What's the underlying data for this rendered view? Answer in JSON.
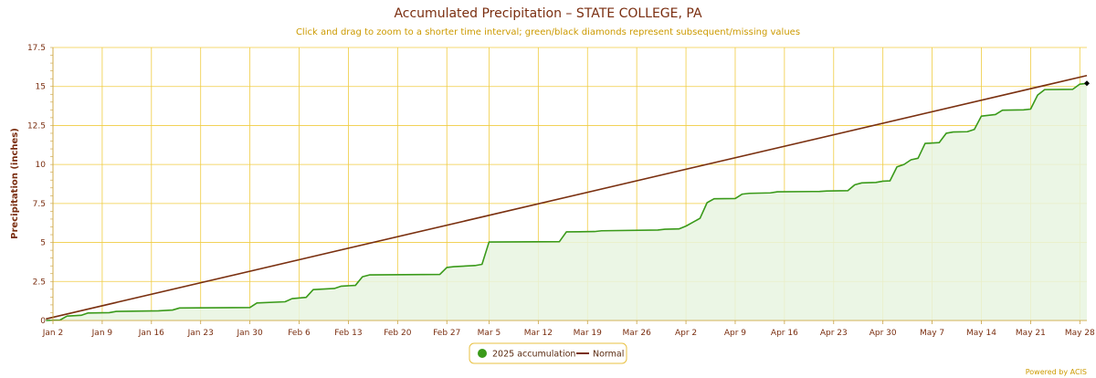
{
  "chart_data": {
    "type": "area",
    "title": "Accumulated Precipitation – STATE COLLEGE, PA",
    "subtitle": "Click and drag to zoom to a shorter time interval; green/black diamonds represent subsequent/missing values",
    "ylabel": "Precipitation (inches)",
    "xlabel": "",
    "ylim": [
      0,
      17.5
    ],
    "yticks": [
      0,
      2.5,
      5,
      7.5,
      10,
      12.5,
      15,
      17.5
    ],
    "ytick_labels": [
      "0",
      "2.5",
      "5",
      "7.5",
      "10",
      "12.5",
      "15",
      "17.5"
    ],
    "xlim": [
      "2025-01-02",
      "2025-05-29"
    ],
    "xticks": [
      {
        "date": "2025-01-02",
        "label": "Jan 2"
      },
      {
        "date": "2025-01-09",
        "label": "Jan 9"
      },
      {
        "date": "2025-01-16",
        "label": "Jan 16"
      },
      {
        "date": "2025-01-23",
        "label": "Jan 23"
      },
      {
        "date": "2025-01-30",
        "label": "Jan 30"
      },
      {
        "date": "2025-02-06",
        "label": "Feb 6"
      },
      {
        "date": "2025-02-13",
        "label": "Feb 13"
      },
      {
        "date": "2025-02-20",
        "label": "Feb 20"
      },
      {
        "date": "2025-02-27",
        "label": "Feb 27"
      },
      {
        "date": "2025-03-05",
        "label": "Mar 5"
      },
      {
        "date": "2025-03-12",
        "label": "Mar 12"
      },
      {
        "date": "2025-03-19",
        "label": "Mar 19"
      },
      {
        "date": "2025-03-26",
        "label": "Mar 26"
      },
      {
        "date": "2025-04-02",
        "label": "Apr 2"
      },
      {
        "date": "2025-04-09",
        "label": "Apr 9"
      },
      {
        "date": "2025-04-16",
        "label": "Apr 16"
      },
      {
        "date": "2025-04-23",
        "label": "Apr 23"
      },
      {
        "date": "2025-04-30",
        "label": "Apr 30"
      },
      {
        "date": "2025-05-07",
        "label": "May 7"
      },
      {
        "date": "2025-05-14",
        "label": "May 14"
      },
      {
        "date": "2025-05-21",
        "label": "May 21"
      },
      {
        "date": "2025-05-28",
        "label": "May 28"
      }
    ],
    "grid": true,
    "legend_position": "bottom-center",
    "colors": {
      "accumulation": "#3a9a1a",
      "accumulation_fill": "#e8f5e0",
      "normal": "#7a3010",
      "grid": "#f0cc40",
      "title": "#7a2e10",
      "subtitle": "#cc9a00",
      "marker": "#000000"
    },
    "series": [
      {
        "name": "2025 accumulation",
        "points": [
          [
            "2025-01-01",
            0.0
          ],
          [
            "2025-01-03",
            0.03
          ],
          [
            "2025-01-04",
            0.28
          ],
          [
            "2025-01-06",
            0.33
          ],
          [
            "2025-01-07",
            0.48
          ],
          [
            "2025-01-10",
            0.5
          ],
          [
            "2025-01-11",
            0.58
          ],
          [
            "2025-01-17",
            0.62
          ],
          [
            "2025-01-19",
            0.67
          ],
          [
            "2025-01-20",
            0.8
          ],
          [
            "2025-01-30",
            0.83
          ],
          [
            "2025-01-31",
            1.12
          ],
          [
            "2025-02-04",
            1.2
          ],
          [
            "2025-02-05",
            1.4
          ],
          [
            "2025-02-07",
            1.48
          ],
          [
            "2025-02-08",
            1.98
          ],
          [
            "2025-02-11",
            2.05
          ],
          [
            "2025-02-12",
            2.2
          ],
          [
            "2025-02-14",
            2.25
          ],
          [
            "2025-02-15",
            2.8
          ],
          [
            "2025-02-16",
            2.92
          ],
          [
            "2025-02-26",
            2.95
          ],
          [
            "2025-02-27",
            3.4
          ],
          [
            "2025-02-28",
            3.45
          ],
          [
            "2025-03-03",
            3.52
          ],
          [
            "2025-03-04",
            3.6
          ],
          [
            "2025-03-05",
            5.03
          ],
          [
            "2025-03-15",
            5.05
          ],
          [
            "2025-03-16",
            5.68
          ],
          [
            "2025-03-20",
            5.7
          ],
          [
            "2025-03-21",
            5.75
          ],
          [
            "2025-03-29",
            5.8
          ],
          [
            "2025-03-30",
            5.85
          ],
          [
            "2025-04-01",
            5.87
          ],
          [
            "2025-04-02",
            6.05
          ],
          [
            "2025-04-04",
            6.55
          ],
          [
            "2025-04-05",
            7.55
          ],
          [
            "2025-04-06",
            7.8
          ],
          [
            "2025-04-09",
            7.82
          ],
          [
            "2025-04-10",
            8.1
          ],
          [
            "2025-04-11",
            8.15
          ],
          [
            "2025-04-14",
            8.18
          ],
          [
            "2025-04-15",
            8.25
          ],
          [
            "2025-04-21",
            8.27
          ],
          [
            "2025-04-22",
            8.3
          ],
          [
            "2025-04-25",
            8.32
          ],
          [
            "2025-04-26",
            8.7
          ],
          [
            "2025-04-27",
            8.82
          ],
          [
            "2025-04-29",
            8.85
          ],
          [
            "2025-04-30",
            8.93
          ],
          [
            "2025-05-01",
            8.95
          ],
          [
            "2025-05-02",
            9.85
          ],
          [
            "2025-05-03",
            10.0
          ],
          [
            "2025-05-04",
            10.3
          ],
          [
            "2025-05-05",
            10.4
          ],
          [
            "2025-05-06",
            11.35
          ],
          [
            "2025-05-08",
            11.4
          ],
          [
            "2025-05-09",
            12.0
          ],
          [
            "2025-05-10",
            12.08
          ],
          [
            "2025-05-12",
            12.1
          ],
          [
            "2025-05-13",
            12.25
          ],
          [
            "2025-05-14",
            13.1
          ],
          [
            "2025-05-16",
            13.2
          ],
          [
            "2025-05-17",
            13.48
          ],
          [
            "2025-05-20",
            13.5
          ],
          [
            "2025-05-21",
            13.55
          ],
          [
            "2025-05-22",
            14.45
          ],
          [
            "2025-05-23",
            14.8
          ],
          [
            "2025-05-27",
            14.82
          ],
          [
            "2025-05-28",
            15.15
          ],
          [
            "2025-05-29",
            15.2
          ]
        ]
      },
      {
        "name": "Normal",
        "points": [
          [
            "2025-01-01",
            0.1
          ],
          [
            "2025-05-29",
            15.7
          ]
        ]
      }
    ],
    "markers": [
      {
        "type": "diamond",
        "color": "black",
        "point": [
          "2025-05-29",
          15.2
        ]
      }
    ]
  },
  "legend": {
    "items": [
      {
        "label": "2025 accumulation",
        "color": "#3a9a1a",
        "symbol": "circle"
      },
      {
        "label": "Normal",
        "color": "#7a3010",
        "symbol": "line"
      }
    ]
  },
  "footer": {
    "credit": "Powered by ACIS"
  }
}
